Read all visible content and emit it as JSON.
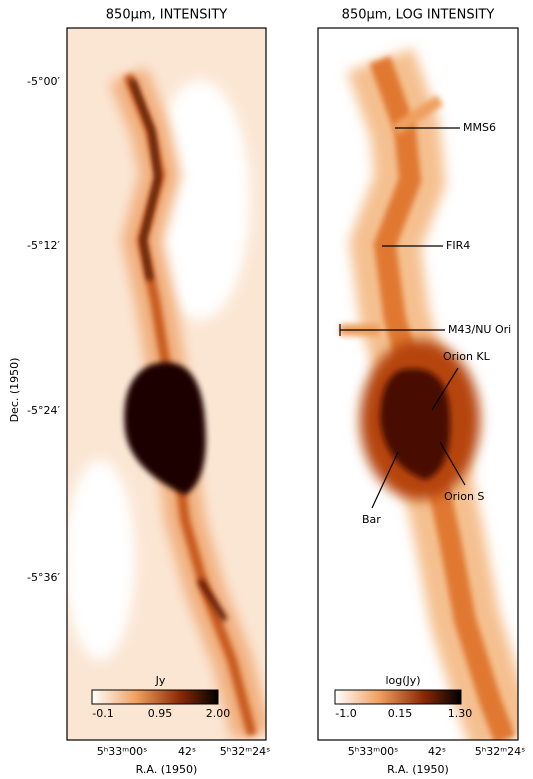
{
  "panels": [
    {
      "title": "850μm, INTENSITY",
      "x_ticks": [
        "5ʰ33ᵐ00ˢ",
        "42ˢ",
        "5ʰ32ᵐ24ˢ"
      ],
      "x_label": "R.A. (1950)",
      "colorbar": {
        "label": "Jy",
        "ticks": [
          "-0.1",
          "0.95",
          "2.00"
        ]
      }
    },
    {
      "title": "850μm, LOG INTENSITY",
      "x_ticks": [
        "5ʰ33ᵐ00ˢ",
        "42ˢ",
        "5ʰ32ᵐ24ˢ"
      ],
      "x_label": "R.A. (1950)",
      "colorbar": {
        "label": "log(Jy)",
        "ticks": [
          "-1.0",
          "0.15",
          "1.30"
        ]
      }
    }
  ],
  "y_label": "Dec. (1950)",
  "y_ticks": [
    "-5°00′",
    "-5°12′",
    "-5°24′",
    "-5°36′"
  ],
  "annotations": [
    "MMS6",
    "FIR4",
    "M43/NU Ori",
    "Orion KL",
    "Orion S",
    "Bar"
  ]
}
